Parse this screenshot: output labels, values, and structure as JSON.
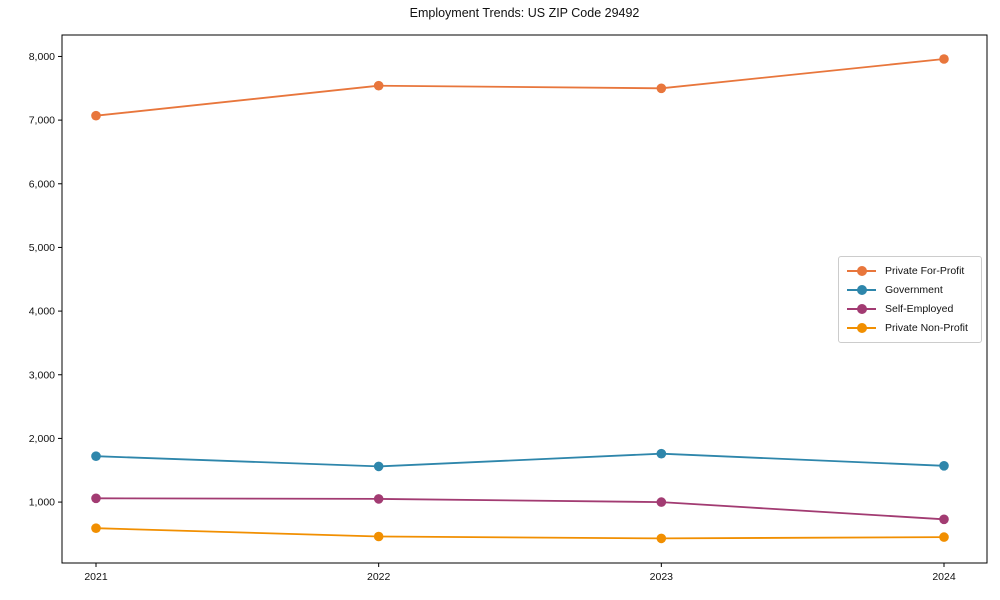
{
  "figure": {
    "background": "#ffffff",
    "text_color": "#111111",
    "spine_color": "#000000"
  },
  "chart_data": {
    "type": "line",
    "title": "Employment Trends: US ZIP Code 29492",
    "x": [
      2021,
      2022,
      2023,
      2024
    ],
    "x_tick_labels": [
      "2021",
      "2022",
      "2023",
      "2024"
    ],
    "y_ticks": [
      1000,
      2000,
      3000,
      4000,
      5000,
      6000,
      7000,
      8000
    ],
    "y_tick_labels": [
      "1,000",
      "2,000",
      "3,000",
      "4,000",
      "5,000",
      "6,000",
      "7,000",
      "8,000"
    ],
    "xlabel": "",
    "ylabel": "",
    "ylim": [
      43,
      8337
    ],
    "grid": false,
    "legend_position": "center right",
    "marker": "circle",
    "series": [
      {
        "name": "Private For-Profit",
        "color": "#E8763C",
        "values": [
          7070,
          7540,
          7500,
          7960
        ]
      },
      {
        "name": "Government",
        "color": "#2E86AB",
        "values": [
          1720,
          1560,
          1760,
          1570
        ]
      },
      {
        "name": "Self-Employed",
        "color": "#A23B72",
        "values": [
          1060,
          1050,
          1000,
          730
        ]
      },
      {
        "name": "Private Non-Profit",
        "color": "#F18F01",
        "values": [
          590,
          460,
          430,
          450
        ]
      }
    ]
  }
}
